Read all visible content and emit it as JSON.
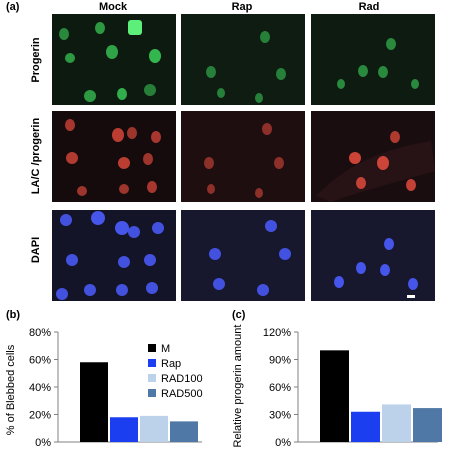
{
  "figure": {
    "panel_a_label": "(a)",
    "panel_b_label": "(b)",
    "panel_c_label": "(c)",
    "columns": [
      "Mock",
      "Rap",
      "Rad"
    ],
    "rows": [
      "Progerin",
      "LA/C /progerin",
      "DAPI"
    ],
    "channel_colors": {
      "green": "#3cd25a",
      "red": "#d8473a",
      "blue": "#4b5cff"
    },
    "tile_backgrounds": [
      [
        "#0c1a10",
        "#0e1c12",
        "#0d1b11"
      ],
      [
        "#160b0c",
        "#1e0e10",
        "#1a0d0f"
      ],
      [
        "#141428",
        "#17172e",
        "#17172e"
      ]
    ]
  },
  "chart_data": [
    {
      "type": "bar",
      "categories": [
        "M",
        "Rap",
        "RAD100",
        "RAD500"
      ],
      "values": [
        58,
        18,
        19,
        15
      ],
      "colors": [
        "#000000",
        "#1b3ff0",
        "#bcd2ea",
        "#4f78a6"
      ],
      "ylabel": "% of Blebbed cells",
      "yticks": [
        "0%",
        "20%",
        "40%",
        "60%",
        "80%"
      ],
      "ylim": [
        0,
        80
      ],
      "legend": [
        "M",
        "Rap",
        "RAD100",
        "RAD500"
      ],
      "legend_position": "right"
    },
    {
      "type": "bar",
      "categories": [
        "M",
        "Rap",
        "RAD100",
        "RAD500"
      ],
      "values": [
        100,
        33,
        41,
        37
      ],
      "colors": [
        "#000000",
        "#1b3ff0",
        "#bcd2ea",
        "#4f78a6"
      ],
      "ylabel": "Relative progerin amount",
      "yticks": [
        "0%",
        "30%",
        "60%",
        "90%",
        "120%"
      ],
      "ylim": [
        0,
        120
      ]
    }
  ]
}
